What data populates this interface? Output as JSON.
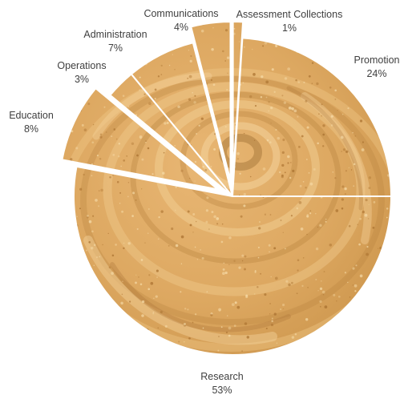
{
  "chart_data": {
    "type": "pie",
    "title": "",
    "start_angle_deg": 0,
    "direction": "clockwise",
    "slice_fill": "peanut-butter-texture",
    "colors": {
      "base": "#D9A45C",
      "light": "#F0C988",
      "dark": "#B9803A",
      "label": "#404040",
      "separator": "#ffffff"
    },
    "slices": [
      {
        "label": "Assessment Collections",
        "value": 1,
        "value_label": "1%",
        "exploded": true
      },
      {
        "label": "Promotion",
        "value": 24,
        "value_label": "24%",
        "exploded": false
      },
      {
        "label": "Research",
        "value": 53,
        "value_label": "53%",
        "exploded": false
      },
      {
        "label": "Education",
        "value": 8,
        "value_label": "8%",
        "exploded": true
      },
      {
        "label": "Operations",
        "value": 3,
        "value_label": "3%",
        "exploded": false
      },
      {
        "label": "Administration",
        "value": 7,
        "value_label": "7%",
        "exploded": false
      },
      {
        "label": "Communications",
        "value": 4,
        "value_label": "4%",
        "exploded": true
      }
    ]
  }
}
